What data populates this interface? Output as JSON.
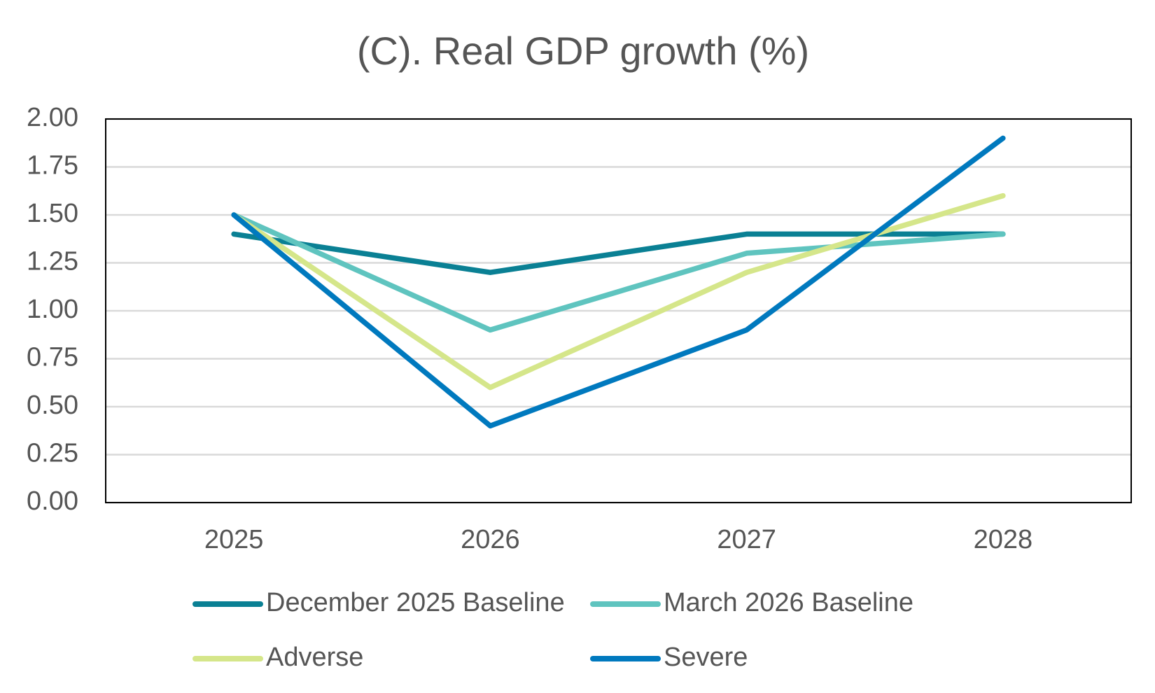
{
  "chart_data": {
    "type": "line",
    "title": "(C). Real GDP growth (%)",
    "categories": [
      "2025",
      "2026",
      "2027",
      "2028"
    ],
    "series": [
      {
        "name": "December 2025 Baseline",
        "color": "#0a8094",
        "values": [
          1.4,
          1.2,
          1.4,
          1.4
        ]
      },
      {
        "name": "March 2026 Baseline",
        "color": "#5fc4bf",
        "values": [
          1.5,
          0.9,
          1.3,
          1.4
        ]
      },
      {
        "name": "Adverse",
        "color": "#d5e68a",
        "values": [
          1.5,
          0.6,
          1.2,
          1.6
        ]
      },
      {
        "name": "Severe",
        "color": "#0079be",
        "values": [
          1.5,
          0.4,
          0.9,
          1.9
        ]
      }
    ],
    "ylim": [
      0,
      2
    ],
    "yticks": [
      {
        "value": 0,
        "label": "0.00"
      },
      {
        "value": 0.25,
        "label": "0.25"
      },
      {
        "value": 0.5,
        "label": "0.50"
      },
      {
        "value": 0.75,
        "label": "0.75"
      },
      {
        "value": 1,
        "label": "1.00"
      },
      {
        "value": 1.25,
        "label": "1.25"
      },
      {
        "value": 1.5,
        "label": "1.50"
      },
      {
        "value": 1.75,
        "label": "1.75"
      },
      {
        "value": 2,
        "label": "2.00"
      }
    ],
    "grid": true,
    "legend": "bottom"
  }
}
